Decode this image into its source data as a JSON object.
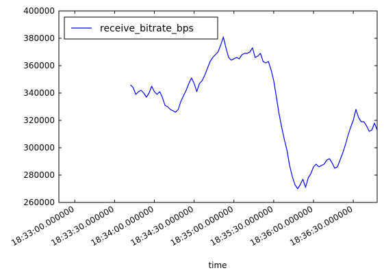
{
  "chart_data": {
    "type": "line",
    "title": "",
    "xlabel": "time",
    "ylabel": "",
    "x_axis_kind": "time",
    "xlim": [
      "18:32:48",
      "18:36:48"
    ],
    "ylim": [
      260000,
      400000
    ],
    "y_ticks": [
      260000,
      280000,
      300000,
      320000,
      340000,
      360000,
      380000,
      400000
    ],
    "x_ticks": [
      "18:33:00",
      "18:33:30",
      "18:34:00",
      "18:34:30",
      "18:35:00",
      "18:35:30",
      "18:36:00",
      "18:36:30"
    ],
    "x_tick_labels": [
      "18:33:00.000000",
      "18:33:30.000000",
      "18:34:00.000000",
      "18:34:30.000000",
      "18:35:00.000000",
      "18:35:30.000000",
      "18:36:00.000000",
      "18:36:30.000000"
    ],
    "grid": false,
    "legend_position": "top-left",
    "series": [
      {
        "name": "receive_bitrate_bps",
        "color": "#0000ff",
        "x": [
          "18:33:42",
          "18:33:44",
          "18:33:46",
          "18:33:48",
          "18:33:50",
          "18:33:52",
          "18:33:54",
          "18:33:56",
          "18:33:58",
          "18:34:00",
          "18:34:02",
          "18:34:04",
          "18:34:06",
          "18:34:08",
          "18:34:10",
          "18:34:12",
          "18:34:14",
          "18:34:16",
          "18:34:18",
          "18:34:20",
          "18:34:22",
          "18:34:24",
          "18:34:26",
          "18:34:28",
          "18:34:30",
          "18:34:32",
          "18:34:34",
          "18:34:36",
          "18:34:38",
          "18:34:40",
          "18:34:42",
          "18:34:44",
          "18:34:46",
          "18:34:48",
          "18:34:50",
          "18:34:52",
          "18:34:54",
          "18:34:56",
          "18:34:58",
          "18:35:00",
          "18:35:02",
          "18:35:04",
          "18:35:06",
          "18:35:08",
          "18:35:10",
          "18:35:12",
          "18:35:14",
          "18:35:16",
          "18:35:18",
          "18:35:20",
          "18:35:22",
          "18:35:24",
          "18:35:26",
          "18:35:28",
          "18:35:30",
          "18:35:32",
          "18:35:34",
          "18:35:36",
          "18:35:38",
          "18:35:40",
          "18:35:42",
          "18:35:44",
          "18:35:46",
          "18:35:48",
          "18:35:50",
          "18:35:52",
          "18:35:54",
          "18:35:56",
          "18:35:58",
          "18:36:00",
          "18:36:02",
          "18:36:04",
          "18:36:06",
          "18:36:08",
          "18:36:10",
          "18:36:12",
          "18:36:14",
          "18:36:16",
          "18:36:18",
          "18:36:20",
          "18:36:22",
          "18:36:24",
          "18:36:26",
          "18:36:28",
          "18:36:30",
          "18:36:32",
          "18:36:34",
          "18:36:36",
          "18:36:38",
          "18:36:40",
          "18:36:42",
          "18:36:44",
          "18:36:46",
          "18:36:48"
        ],
        "values": [
          346000,
          344000,
          339000,
          341000,
          342000,
          340000,
          337000,
          340000,
          345000,
          341000,
          339000,
          341000,
          337000,
          331000,
          330000,
          328000,
          327000,
          326000,
          328000,
          334000,
          338000,
          342000,
          347000,
          351000,
          347000,
          341000,
          347000,
          349000,
          353000,
          358000,
          363000,
          366000,
          368000,
          370000,
          375000,
          381000,
          373000,
          366000,
          364000,
          365000,
          366000,
          365000,
          368000,
          369000,
          369000,
          370000,
          373000,
          366000,
          367000,
          369000,
          363000,
          362000,
          363000,
          357000,
          349000,
          337000,
          325000,
          315000,
          306000,
          298000,
          287000,
          279000,
          273000,
          270000,
          273000,
          277000,
          271000,
          278000,
          281000,
          286000,
          288000,
          286000,
          287000,
          288000,
          291000,
          292000,
          289000,
          285000,
          286000,
          291000,
          296000,
          302000,
          309000,
          315000,
          320000,
          328000,
          322000,
          319000,
          319000,
          316000,
          312000,
          313000,
          318000,
          313000
        ]
      }
    ]
  }
}
